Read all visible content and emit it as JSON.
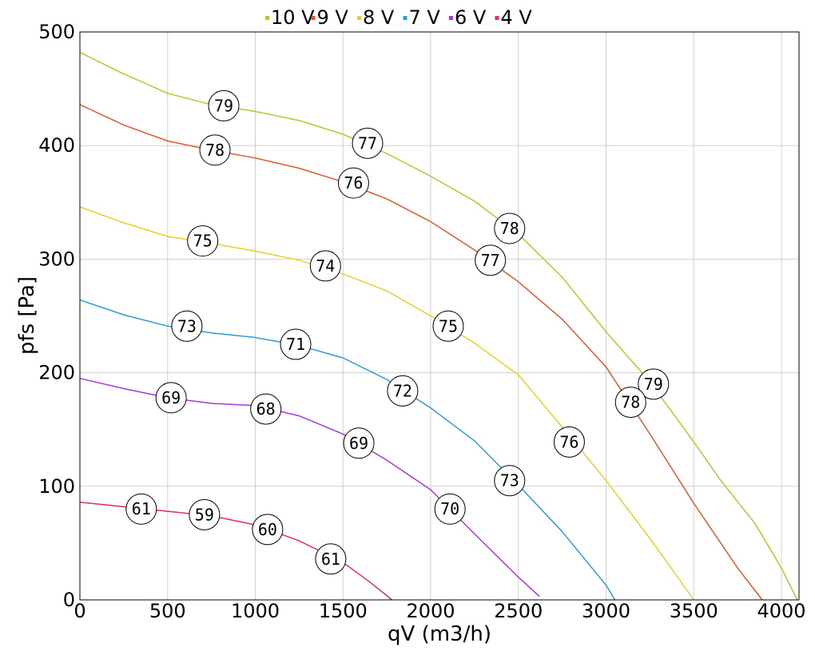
{
  "chart_data": {
    "type": "line",
    "xlabel": "qV (m3/h)",
    "ylabel": "pfs [Pa]",
    "xlim": [
      0,
      4100
    ],
    "ylim": [
      0,
      500
    ],
    "x_ticks": [
      0,
      500,
      1000,
      1500,
      2000,
      2500,
      3000,
      3500,
      4000
    ],
    "y_ticks": [
      0,
      100,
      200,
      300,
      400,
      500
    ],
    "grid": true,
    "legend_position": "top",
    "series": [
      {
        "name": "10 V",
        "color": "#a4d12a",
        "points": [
          [
            0,
            482
          ],
          [
            250,
            463
          ],
          [
            500,
            446
          ],
          [
            750,
            436
          ],
          [
            1000,
            430
          ],
          [
            1250,
            422
          ],
          [
            1500,
            410
          ],
          [
            1750,
            393
          ],
          [
            2000,
            373
          ],
          [
            2250,
            351
          ],
          [
            2500,
            322
          ],
          [
            2750,
            284
          ],
          [
            3000,
            236
          ],
          [
            3250,
            192
          ],
          [
            3500,
            139
          ],
          [
            3650,
            106
          ],
          [
            3850,
            67
          ],
          [
            4000,
            28
          ],
          [
            4090,
            0
          ]
        ],
        "labels": [
          {
            "x": 820,
            "y": 435,
            "text": "79"
          },
          {
            "x": 1640,
            "y": 402,
            "text": "77"
          },
          {
            "x": 2450,
            "y": 327,
            "text": "78"
          },
          {
            "x": 3270,
            "y": 190,
            "text": "79"
          }
        ]
      },
      {
        "name": "9 V",
        "color": "#e2562a",
        "points": [
          [
            0,
            436
          ],
          [
            250,
            418
          ],
          [
            500,
            404
          ],
          [
            750,
            396
          ],
          [
            1000,
            389
          ],
          [
            1250,
            380
          ],
          [
            1500,
            368
          ],
          [
            1750,
            353
          ],
          [
            2000,
            333
          ],
          [
            2250,
            308
          ],
          [
            2500,
            280
          ],
          [
            2750,
            247
          ],
          [
            3000,
            205
          ],
          [
            3250,
            146
          ],
          [
            3500,
            85
          ],
          [
            3750,
            28
          ],
          [
            3890,
            0
          ]
        ],
        "labels": [
          {
            "x": 770,
            "y": 396,
            "text": "78"
          },
          {
            "x": 1560,
            "y": 367,
            "text": "76"
          },
          {
            "x": 2340,
            "y": 299,
            "text": "77"
          },
          {
            "x": 3140,
            "y": 174,
            "text": "78"
          }
        ]
      },
      {
        "name": "8 V",
        "color": "#e6d21e",
        "points": [
          [
            0,
            346
          ],
          [
            250,
            332
          ],
          [
            500,
            320
          ],
          [
            750,
            314
          ],
          [
            1000,
            307
          ],
          [
            1250,
            299
          ],
          [
            1500,
            287
          ],
          [
            1750,
            272
          ],
          [
            2000,
            250
          ],
          [
            2250,
            226
          ],
          [
            2500,
            198
          ],
          [
            2750,
            152
          ],
          [
            3000,
            105
          ],
          [
            3250,
            54
          ],
          [
            3500,
            0
          ]
        ],
        "labels": [
          {
            "x": 700,
            "y": 316,
            "text": "75"
          },
          {
            "x": 1400,
            "y": 294,
            "text": "74"
          },
          {
            "x": 2100,
            "y": 241,
            "text": "75"
          },
          {
            "x": 2790,
            "y": 139,
            "text": "76"
          }
        ]
      },
      {
        "name": "7 V",
        "color": "#2a9cd8",
        "points": [
          [
            0,
            264
          ],
          [
            250,
            251
          ],
          [
            500,
            241
          ],
          [
            750,
            235
          ],
          [
            1000,
            231
          ],
          [
            1250,
            224
          ],
          [
            1500,
            213
          ],
          [
            1750,
            194
          ],
          [
            2000,
            169
          ],
          [
            2250,
            140
          ],
          [
            2500,
            101
          ],
          [
            2750,
            60
          ],
          [
            3000,
            13
          ],
          [
            3050,
            0
          ]
        ],
        "labels": [
          {
            "x": 610,
            "y": 241,
            "text": "73"
          },
          {
            "x": 1230,
            "y": 225,
            "text": "71"
          },
          {
            "x": 1840,
            "y": 184,
            "text": "72"
          },
          {
            "x": 2450,
            "y": 105,
            "text": "73"
          }
        ]
      },
      {
        "name": "6 V",
        "color": "#a33ae0",
        "points": [
          [
            0,
            195
          ],
          [
            250,
            186
          ],
          [
            500,
            178
          ],
          [
            750,
            173
          ],
          [
            1000,
            171
          ],
          [
            1250,
            162
          ],
          [
            1500,
            146
          ],
          [
            1750,
            123
          ],
          [
            2000,
            97
          ],
          [
            2250,
            58
          ],
          [
            2500,
            20
          ],
          [
            2620,
            3
          ]
        ],
        "labels": [
          {
            "x": 520,
            "y": 178,
            "text": "69"
          },
          {
            "x": 1060,
            "y": 168,
            "text": "68"
          },
          {
            "x": 1590,
            "y": 138,
            "text": "69"
          },
          {
            "x": 2110,
            "y": 80,
            "text": "70"
          }
        ]
      },
      {
        "name": "4 V",
        "color": "#e22a6c",
        "points": [
          [
            0,
            86
          ],
          [
            250,
            82
          ],
          [
            500,
            78
          ],
          [
            750,
            74
          ],
          [
            1000,
            66
          ],
          [
            1250,
            52
          ],
          [
            1500,
            33
          ],
          [
            1650,
            16
          ],
          [
            1780,
            0
          ]
        ],
        "labels": [
          {
            "x": 350,
            "y": 80,
            "text": "61"
          },
          {
            "x": 710,
            "y": 75,
            "text": "59"
          },
          {
            "x": 1070,
            "y": 62,
            "text": "60"
          },
          {
            "x": 1430,
            "y": 36,
            "text": "61"
          }
        ]
      }
    ]
  }
}
